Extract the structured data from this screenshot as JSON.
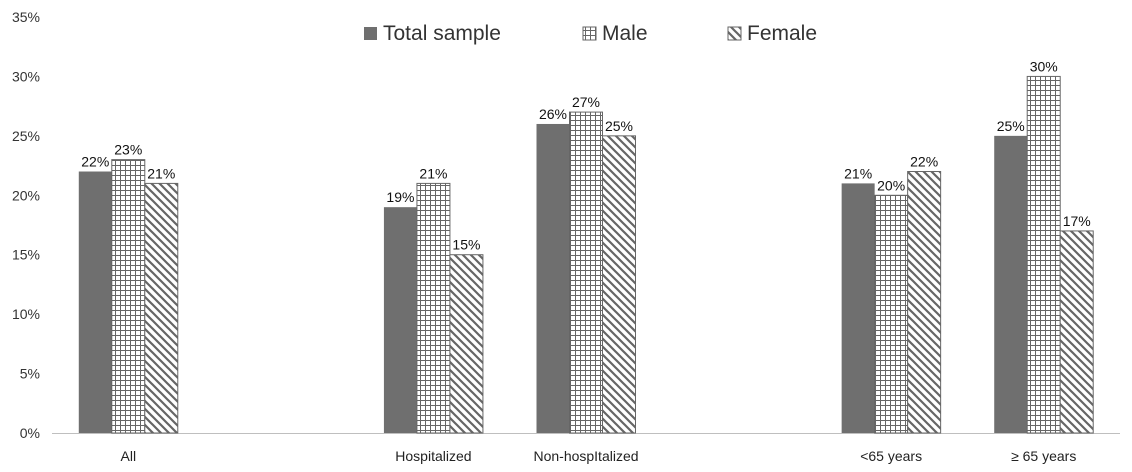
{
  "chart_data": {
    "type": "bar",
    "categories": [
      "All",
      "Hospitalized",
      "Non-hospItalized",
      "<65 years",
      "≥ 65 years"
    ],
    "category_gaps_before": [
      0,
      1,
      0,
      1,
      0
    ],
    "series": [
      {
        "name": "Total sample",
        "values": [
          22,
          19,
          26,
          21,
          25
        ],
        "pattern": "solid"
      },
      {
        "name": "Male",
        "values": [
          23,
          21,
          27,
          20,
          30
        ],
        "pattern": "grid"
      },
      {
        "name": "Female",
        "values": [
          21,
          15,
          25,
          22,
          17
        ],
        "pattern": "diagonal"
      }
    ],
    "data_labels": [
      [
        "22%",
        "19%",
        "26%",
        "21%",
        "25%"
      ],
      [
        "23%",
        "21%",
        "27%",
        "20%",
        "30%"
      ],
      [
        "21%",
        "15%",
        "25%",
        "22%",
        "17%"
      ]
    ],
    "ylim": [
      0,
      35
    ],
    "yticks": [
      0,
      5,
      10,
      15,
      20,
      25,
      30,
      35
    ],
    "ytick_labels": [
      "0%",
      "5%",
      "10%",
      "15%",
      "20%",
      "25%",
      "30%",
      "35%"
    ],
    "title": "",
    "xlabel": "",
    "ylabel": "",
    "grid": false,
    "legend_position": "top-center",
    "colors": {
      "bar_fill": "#6f6f6f",
      "pattern_stroke": "#666666",
      "axis": "#bfbfbf"
    }
  }
}
